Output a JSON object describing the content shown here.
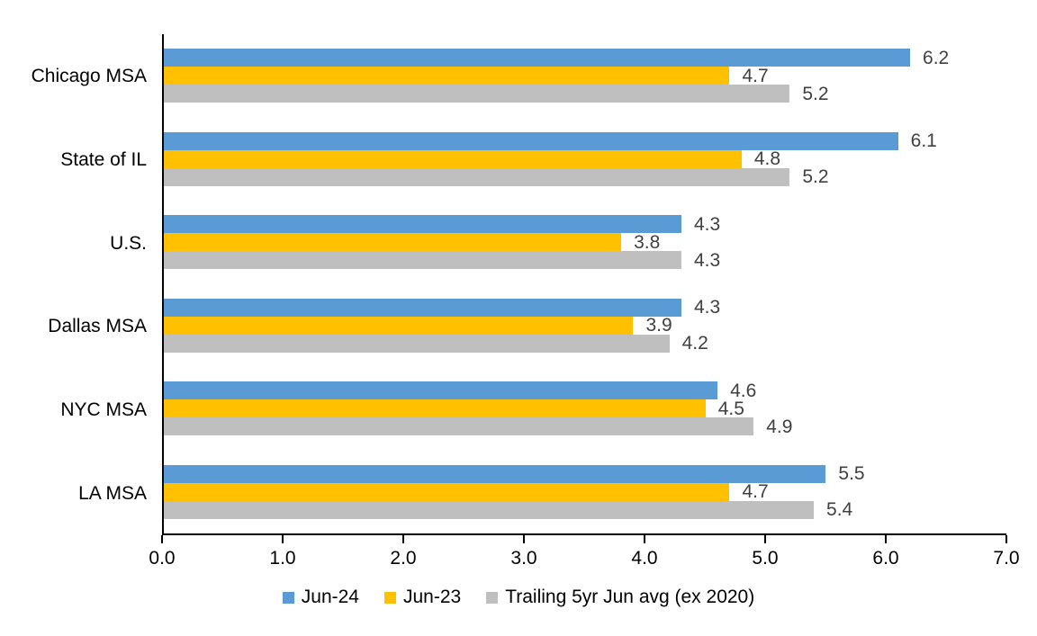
{
  "chart_data": {
    "type": "bar",
    "orientation": "horizontal",
    "title": "",
    "xlabel": "",
    "ylabel": "",
    "categories": [
      "Chicago MSA",
      "State of IL",
      "U.S.",
      "Dallas MSA",
      "NYC MSA",
      "LA MSA"
    ],
    "series": [
      {
        "name": "Jun-24",
        "color": "#5B9BD5",
        "values": [
          6.2,
          6.1,
          4.3,
          4.3,
          4.6,
          5.5
        ]
      },
      {
        "name": "Jun-23",
        "color": "#FFC000",
        "values": [
          4.7,
          4.8,
          3.8,
          3.9,
          4.5,
          4.7
        ]
      },
      {
        "name": "Trailing 5yr Jun avg (ex 2020)",
        "color": "#BFBFBF",
        "values": [
          5.2,
          5.2,
          4.3,
          4.2,
          4.9,
          5.4
        ]
      }
    ],
    "xlim": [
      0.0,
      7.0
    ],
    "x_ticks": [
      "0.0",
      "1.0",
      "2.0",
      "3.0",
      "4.0",
      "5.0",
      "6.0",
      "7.0"
    ],
    "data_labels": true,
    "grid": false,
    "legend_position": "bottom"
  },
  "colors": {
    "background": "#FFFFFF",
    "axis": "#000000",
    "category_label": "#000000",
    "tick_label": "#000000",
    "value_label": "#404040"
  }
}
